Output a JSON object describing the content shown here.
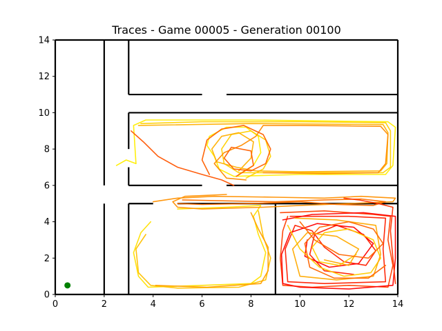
{
  "chart_data": {
    "type": "line",
    "title": "Traces - Game 00005 - Generation 00100",
    "xlabel": "",
    "ylabel": "",
    "xlim": [
      0,
      14
    ],
    "ylim": [
      0,
      14
    ],
    "xticks": [
      "0",
      "2",
      "4",
      "6",
      "8",
      "10",
      "12",
      "14"
    ],
    "yticks": [
      "0",
      "2",
      "4",
      "6",
      "8",
      "10",
      "12",
      "14"
    ],
    "grid": false,
    "legend": "none",
    "walls": [
      [
        [
          2,
          14
        ],
        [
          2,
          6
        ]
      ],
      [
        [
          2,
          5
        ],
        [
          2,
          0
        ]
      ],
      [
        [
          3,
          14
        ],
        [
          3,
          11
        ]
      ],
      [
        [
          3,
          11
        ],
        [
          6,
          11
        ]
      ],
      [
        [
          7,
          11
        ],
        [
          14,
          11
        ]
      ],
      [
        [
          3,
          10
        ],
        [
          14,
          10
        ]
      ],
      [
        [
          3,
          10
        ],
        [
          3,
          8
        ]
      ],
      [
        [
          3,
          7
        ],
        [
          3,
          6
        ]
      ],
      [
        [
          3,
          6
        ],
        [
          6,
          6
        ]
      ],
      [
        [
          7,
          6
        ],
        [
          14,
          6
        ]
      ],
      [
        [
          3,
          5
        ],
        [
          4,
          5
        ]
      ],
      [
        [
          3,
          5
        ],
        [
          3,
          0
        ]
      ],
      [
        [
          5,
          5
        ],
        [
          14,
          5
        ]
      ],
      [
        [
          9,
          5
        ],
        [
          9,
          0
        ]
      ],
      [
        [
          14,
          14
        ],
        [
          14,
          0
        ]
      ],
      [
        [
          0,
          14
        ],
        [
          0,
          0
        ]
      ],
      [
        [
          0,
          14
        ],
        [
          14,
          14
        ]
      ],
      [
        [
          0,
          0
        ],
        [
          14,
          0
        ]
      ]
    ],
    "start_point": [
      0.5,
      0.5
    ],
    "start_color": "#008000",
    "trace_colors": [
      "#ffff00",
      "#ffd700",
      "#ffb000",
      "#ff8c00",
      "#ff6000",
      "#ff3000",
      "#ff0000"
    ],
    "traces": [
      {
        "color": "#ffee00",
        "points": [
          [
            3.3,
            7.2
          ],
          [
            3.2,
            9.3
          ],
          [
            3.7,
            9.6
          ],
          [
            8,
            9.6
          ],
          [
            13.6,
            9.5
          ],
          [
            13.9,
            9.2
          ],
          [
            13.8,
            7.1
          ],
          [
            13.5,
            6.6
          ],
          [
            10,
            6.6
          ],
          [
            7.3,
            6.5
          ],
          [
            6.7,
            6.9
          ],
          [
            6.5,
            7.6
          ],
          [
            6.2,
            8.2
          ],
          [
            6.3,
            8.7
          ],
          [
            7.0,
            9.2
          ],
          [
            7.8,
            9.2
          ],
          [
            8.3,
            8.7
          ],
          [
            8.4,
            7.8
          ],
          [
            8.1,
            7.1
          ],
          [
            7.5,
            6.6
          ]
        ]
      },
      {
        "color": "#ffd000",
        "points": [
          [
            3.5,
            9.4
          ],
          [
            6,
            9.5
          ],
          [
            10,
            9.5
          ],
          [
            13.5,
            9.45
          ],
          [
            13.7,
            9.0
          ],
          [
            13.7,
            7.0
          ],
          [
            13.4,
            6.7
          ],
          [
            10,
            6.7
          ],
          [
            7.5,
            6.7
          ],
          [
            6.9,
            7.2
          ],
          [
            6.8,
            8.0
          ],
          [
            7.2,
            8.8
          ],
          [
            8.0,
            9.0
          ],
          [
            8.6,
            8.5
          ],
          [
            8.8,
            7.6
          ],
          [
            8.5,
            6.9
          ],
          [
            7.8,
            6.4
          ]
        ]
      },
      {
        "color": "#ffb000",
        "points": [
          [
            3.4,
            9.3
          ],
          [
            8,
            9.4
          ],
          [
            13.4,
            9.35
          ],
          [
            13.6,
            8.9
          ],
          [
            13.55,
            7.2
          ],
          [
            13.3,
            6.8
          ],
          [
            10,
            6.75
          ],
          [
            8.2,
            6.8
          ],
          [
            7.4,
            7.0
          ],
          [
            6.6,
            7.3
          ],
          [
            6.4,
            8.0
          ],
          [
            6.8,
            8.7
          ],
          [
            7.5,
            8.9
          ],
          [
            8.1,
            8.4
          ],
          [
            8.0,
            7.5
          ],
          [
            7.5,
            6.8
          ]
        ]
      },
      {
        "color": "#ff8c00",
        "points": [
          [
            8.5,
            6.7
          ],
          [
            11,
            6.65
          ],
          [
            13.2,
            6.7
          ],
          [
            13.5,
            7.2
          ],
          [
            13.6,
            8.8
          ],
          [
            13.3,
            9.25
          ],
          [
            10,
            9.3
          ],
          [
            8.5,
            9.3
          ],
          [
            8.2,
            8.7
          ],
          [
            7.6,
            8.2
          ],
          [
            6.9,
            7.8
          ],
          [
            6.5,
            7.2
          ],
          [
            7.0,
            6.4
          ],
          [
            7.8,
            6.3
          ]
        ]
      },
      {
        "color": "#ff6000",
        "points": [
          [
            6.3,
            6.6
          ],
          [
            6.0,
            7.4
          ],
          [
            6.2,
            8.5
          ],
          [
            6.8,
            9.1
          ],
          [
            7.7,
            9.3
          ],
          [
            8.5,
            8.8
          ],
          [
            8.8,
            8.0
          ],
          [
            8.6,
            7.2
          ],
          [
            8.0,
            6.8
          ],
          [
            7.3,
            6.9
          ],
          [
            6.9,
            7.5
          ],
          [
            7.2,
            8.1
          ],
          [
            8.0,
            7.9
          ],
          [
            8.1,
            7.1
          ],
          [
            7.4,
            6.5
          ]
        ]
      },
      {
        "color": "#ff5500",
        "points": [
          [
            3.1,
            9.0
          ],
          [
            3.6,
            8.4
          ],
          [
            4.2,
            7.6
          ],
          [
            5.0,
            7.0
          ],
          [
            6.0,
            6.6
          ],
          [
            6.8,
            6.3
          ],
          [
            7.3,
            6.0
          ]
        ]
      },
      {
        "color": "#ffee00",
        "points": [
          [
            2.5,
            7.1
          ],
          [
            2.9,
            7.4
          ],
          [
            3.3,
            7.2
          ]
        ]
      },
      {
        "color": "#ffe000",
        "points": [
          [
            5.0,
            4.7
          ],
          [
            7.0,
            4.8
          ],
          [
            8.4,
            4.9
          ],
          [
            8.1,
            4.3
          ],
          [
            8.3,
            3.3
          ],
          [
            8.6,
            2.3
          ],
          [
            8.4,
            1.0
          ],
          [
            8.0,
            0.6
          ],
          [
            6.0,
            0.5
          ],
          [
            3.8,
            0.4
          ],
          [
            3.4,
            1.0
          ],
          [
            3.2,
            2.3
          ],
          [
            3.5,
            3.4
          ],
          [
            3.9,
            4.0
          ]
        ]
      },
      {
        "color": "#ffc000",
        "points": [
          [
            8.3,
            4.6
          ],
          [
            8.5,
            3.2
          ],
          [
            8.8,
            2.0
          ],
          [
            8.6,
            0.8
          ],
          [
            7.5,
            0.4
          ],
          [
            5.0,
            0.35
          ],
          [
            3.9,
            0.5
          ],
          [
            3.4,
            1.2
          ],
          [
            3.3,
            2.5
          ],
          [
            3.7,
            3.3
          ]
        ]
      },
      {
        "color": "#ffa000",
        "points": [
          [
            8.0,
            4.5
          ],
          [
            8.3,
            3.6
          ],
          [
            8.7,
            2.6
          ],
          [
            8.7,
            1.3
          ],
          [
            8.4,
            0.6
          ],
          [
            6.2,
            0.4
          ],
          [
            4.1,
            0.5
          ]
        ]
      },
      {
        "color": "#ff9000",
        "points": [
          [
            4.0,
            5.1
          ],
          [
            5.0,
            5.3
          ],
          [
            6.5,
            5.4
          ],
          [
            9.0,
            5.35
          ],
          [
            11.0,
            5.3
          ],
          [
            12.5,
            5.4
          ],
          [
            13.9,
            5.3
          ],
          [
            13.8,
            5.1
          ],
          [
            12.0,
            5.0
          ],
          [
            10.0,
            4.9
          ],
          [
            8.5,
            4.8
          ],
          [
            6.0,
            4.7
          ],
          [
            5.0,
            4.8
          ],
          [
            4.8,
            5.1
          ],
          [
            5.3,
            5.4
          ],
          [
            7.0,
            5.5
          ]
        ]
      },
      {
        "color": "#ff7000",
        "points": [
          [
            5.2,
            5.2
          ],
          [
            7.0,
            5.15
          ],
          [
            9.0,
            5.1
          ],
          [
            11.0,
            5.2
          ],
          [
            12.5,
            5.25
          ],
          [
            13.5,
            5.1
          ],
          [
            13.0,
            4.9
          ],
          [
            11.5,
            4.95
          ],
          [
            10.0,
            5.1
          ],
          [
            8.0,
            5.0
          ],
          [
            6.0,
            4.95
          ],
          [
            5.0,
            5.0
          ]
        ]
      },
      {
        "color": "#ff4000",
        "points": [
          [
            9.2,
            4.5
          ],
          [
            11.0,
            4.6
          ],
          [
            13.0,
            4.4
          ],
          [
            13.7,
            4.3
          ],
          [
            13.6,
            3.0
          ],
          [
            13.8,
            1.6
          ],
          [
            13.6,
            0.4
          ],
          [
            12.0,
            0.5
          ],
          [
            10.5,
            0.4
          ],
          [
            9.3,
            0.5
          ],
          [
            9.2,
            2.0
          ],
          [
            9.3,
            3.5
          ],
          [
            9.5,
            4.3
          ]
        ]
      },
      {
        "color": "#ff2000",
        "points": [
          [
            9.6,
            4.3
          ],
          [
            12.0,
            4.3
          ],
          [
            13.5,
            4.2
          ],
          [
            13.4,
            2.5
          ],
          [
            13.5,
            0.7
          ],
          [
            11.0,
            0.6
          ],
          [
            9.5,
            0.7
          ],
          [
            9.4,
            2.5
          ],
          [
            9.8,
            3.8
          ],
          [
            10.5,
            3.5
          ],
          [
            11.0,
            2.6
          ],
          [
            11.8,
            1.8
          ],
          [
            12.7,
            1.6
          ],
          [
            13.1,
            2.4
          ],
          [
            12.6,
            3.3
          ],
          [
            11.5,
            3.8
          ],
          [
            10.6,
            3.3
          ],
          [
            10.4,
            2.2
          ],
          [
            11.0,
            1.3
          ],
          [
            12.2,
            1.1
          ]
        ]
      },
      {
        "color": "#ff0000",
        "points": [
          [
            9.3,
            4.1
          ],
          [
            10.5,
            4.4
          ],
          [
            12.6,
            4.5
          ],
          [
            13.9,
            4.3
          ],
          [
            13.9,
            2.0
          ],
          [
            13.8,
            0.5
          ],
          [
            12.0,
            0.3
          ],
          [
            10.0,
            0.4
          ],
          [
            9.3,
            0.6
          ],
          [
            9.25,
            2.2
          ],
          [
            9.6,
            3.4
          ],
          [
            10.7,
            3.9
          ],
          [
            12.2,
            3.7
          ],
          [
            13.0,
            2.8
          ],
          [
            12.4,
            1.7
          ],
          [
            11.2,
            1.5
          ],
          [
            10.2,
            2.1
          ],
          [
            10.3,
            3.0
          ]
        ]
      },
      {
        "color": "#ffcc00",
        "points": [
          [
            9.5,
            3.8
          ],
          [
            10.0,
            2.5
          ],
          [
            10.8,
            1.5
          ],
          [
            11.8,
            1.0
          ],
          [
            12.9,
            1.2
          ],
          [
            13.3,
            2.0
          ],
          [
            13.0,
            3.0
          ],
          [
            12.0,
            3.6
          ],
          [
            11.0,
            3.4
          ],
          [
            10.5,
            2.6
          ],
          [
            10.8,
            1.8
          ],
          [
            11.6,
            1.6
          ],
          [
            12.3,
            2.2
          ]
        ]
      },
      {
        "color": "#ffaa00",
        "points": [
          [
            9.8,
            4.2
          ],
          [
            11.5,
            4.1
          ],
          [
            13.1,
            3.8
          ],
          [
            13.3,
            2.2
          ],
          [
            13.0,
            1.0
          ],
          [
            11.5,
            0.8
          ],
          [
            10.0,
            1.0
          ],
          [
            9.7,
            2.5
          ],
          [
            10.3,
            3.4
          ],
          [
            11.5,
            3.2
          ],
          [
            12.4,
            2.5
          ],
          [
            12.0,
            1.6
          ],
          [
            11.0,
            1.9
          ]
        ]
      },
      {
        "color": "#ff6600",
        "points": [
          [
            10.0,
            4.0
          ],
          [
            10.6,
            3.0
          ],
          [
            11.6,
            2.2
          ],
          [
            12.8,
            2.0
          ],
          [
            13.4,
            2.8
          ],
          [
            13.0,
            3.6
          ],
          [
            12.0,
            4.0
          ],
          [
            10.8,
            3.7
          ],
          [
            10.2,
            2.8
          ],
          [
            10.4,
            1.5
          ],
          [
            11.4,
            0.9
          ],
          [
            12.8,
            0.9
          ],
          [
            13.5,
            1.6
          ]
        ]
      },
      {
        "color": "#ff3300",
        "points": [
          [
            11.8,
            5.3
          ],
          [
            12.4,
            5.2
          ],
          [
            13.2,
            5.0
          ],
          [
            13.8,
            4.8
          ],
          [
            13.7,
            3.5
          ],
          [
            13.8,
            2.0
          ],
          [
            13.9,
            0.6
          ]
        ]
      }
    ]
  }
}
